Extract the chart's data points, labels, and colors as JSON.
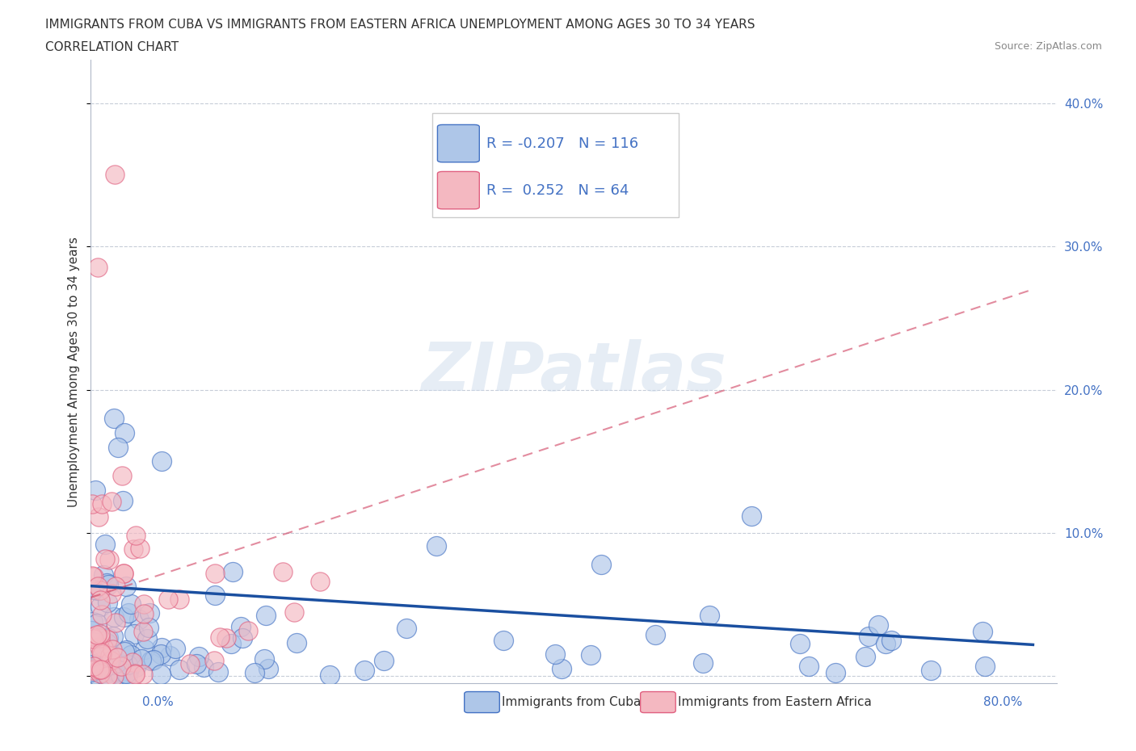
{
  "title_line1": "IMMIGRANTS FROM CUBA VS IMMIGRANTS FROM EASTERN AFRICA UNEMPLOYMENT AMONG AGES 30 TO 34 YEARS",
  "title_line2": "CORRELATION CHART",
  "source": "Source: ZipAtlas.com",
  "ylabel": "Unemployment Among Ages 30 to 34 years",
  "xlim": [
    0.0,
    0.82
  ],
  "ylim": [
    -0.005,
    0.43
  ],
  "xticks": [
    0.0,
    0.1,
    0.2,
    0.3,
    0.4,
    0.5,
    0.6,
    0.7,
    0.8
  ],
  "yticks": [
    0.0,
    0.1,
    0.2,
    0.3,
    0.4
  ],
  "right_yticklabels": [
    "",
    "10.0%",
    "20.0%",
    "30.0%",
    "40.0%"
  ],
  "cuba_color": "#aec6e8",
  "cuba_edge_color": "#4472c4",
  "eastern_africa_color": "#f4b8c1",
  "eastern_africa_edge_color": "#e06080",
  "cuba_R": -0.207,
  "cuba_N": 116,
  "eastern_africa_R": 0.252,
  "eastern_africa_N": 64,
  "trend_cuba_color": "#1a4fa0",
  "trend_eastern_africa_color": "#d04060",
  "watermark": "ZIPatlas",
  "legend_label_cuba": "Immigrants from Cuba",
  "legend_label_eastern_africa": "Immigrants from Eastern Africa",
  "cuba_trend_y0": 0.063,
  "cuba_trend_y1": 0.022,
  "ea_trend_y0": 0.055,
  "ea_trend_y1": 0.27,
  "ea_trend_x0": 0.0,
  "ea_trend_x1": 0.8
}
